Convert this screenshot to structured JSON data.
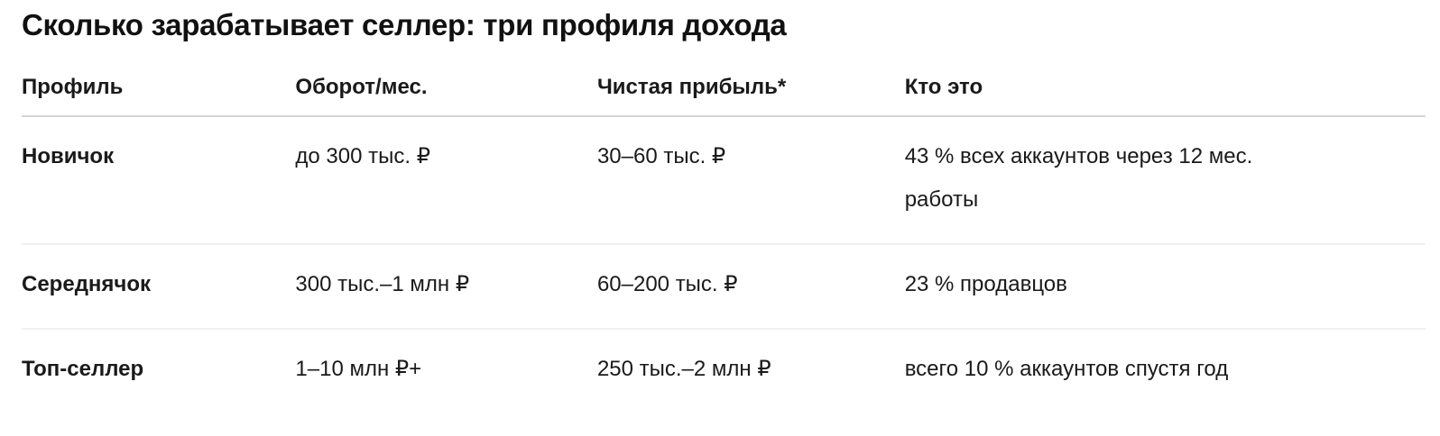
{
  "title": "Сколько зарабатывает селлер: три профиля дохода",
  "table": {
    "columns": [
      "Профиль",
      "Оборот/мес.",
      "Чистая прибыль*",
      "Кто это"
    ],
    "rows": [
      {
        "profile": "Новичок",
        "turnover": "до 300 тыс. ₽",
        "profit": "30–60 тыс. ₽",
        "who": "43 % всех аккаунтов через 12 мес. работы"
      },
      {
        "profile": "Середнячок",
        "turnover": "300 тыс.–1 млн ₽",
        "profit": "60–200 тыс. ₽",
        "who": "23 % продавцов"
      },
      {
        "profile": "Топ-селлер",
        "turnover": "1–10 млн ₽+",
        "profit": "250 тыс.–2 млн ₽",
        "who": "всего 10 % аккаунтов спустя год"
      }
    ]
  },
  "colors": {
    "background": "#ffffff",
    "text": "#1a1a1a",
    "header_divider": "#d5d5d5",
    "row_divider": "#f0f0f0"
  }
}
